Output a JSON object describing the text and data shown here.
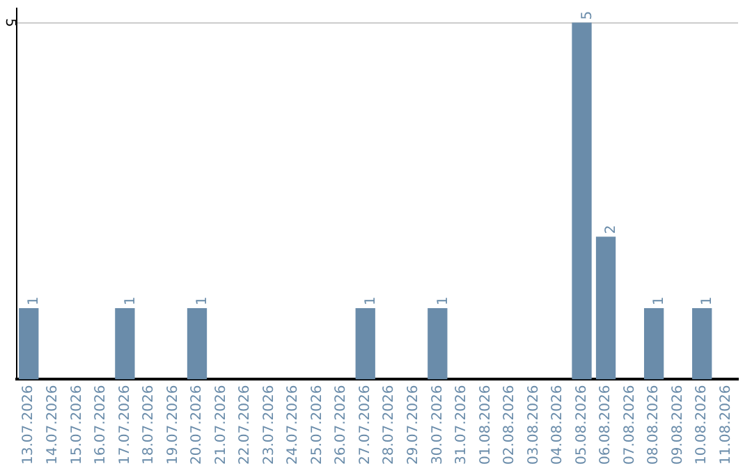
{
  "chart_data": {
    "type": "bar",
    "categories": [
      "13.07.2026",
      "14.07.2026",
      "15.07.2026",
      "16.07.2026",
      "17.07.2026",
      "18.07.2026",
      "19.07.2026",
      "20.07.2026",
      "21.07.2026",
      "22.07.2026",
      "23.07.2026",
      "24.07.2026",
      "25.07.2026",
      "26.07.2026",
      "27.07.2026",
      "28.07.2026",
      "29.07.2026",
      "30.07.2026",
      "31.07.2026",
      "01.08.2026",
      "02.08.2026",
      "03.08.2026",
      "04.08.2026",
      "05.08.2026",
      "06.08.2026",
      "07.08.2026",
      "08.08.2026",
      "09.08.2026",
      "10.08.2026",
      "11.08.2026"
    ],
    "values": [
      1,
      0,
      0,
      0,
      1,
      0,
      0,
      1,
      0,
      0,
      0,
      0,
      0,
      0,
      1,
      0,
      0,
      1,
      0,
      0,
      0,
      0,
      0,
      5,
      2,
      0,
      1,
      0,
      1,
      0
    ],
    "value_labels": [
      "1",
      null,
      null,
      null,
      "1",
      null,
      null,
      "1",
      null,
      null,
      null,
      null,
      null,
      null,
      "1",
      null,
      null,
      "1",
      null,
      null,
      null,
      null,
      null,
      "5",
      "2",
      null,
      "1",
      null,
      "1",
      null
    ],
    "color": "#6a8caa",
    "ylim": [
      0,
      5.2
    ],
    "yticks": [
      5
    ],
    "grid": "y",
    "legend": false
  }
}
